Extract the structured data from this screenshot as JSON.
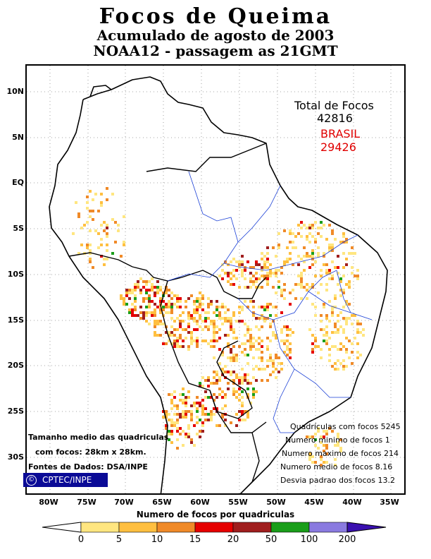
{
  "title": {
    "line1": "Focos de Queima",
    "line2": "Acumulado de agosto de 2003",
    "line3": "NOAA12 - passagem as 21GMT"
  },
  "axes": {
    "lat_labels": [
      "10N",
      "5N",
      "EQ",
      "5S",
      "10S",
      "15S",
      "20S",
      "25S",
      "30S"
    ],
    "lon_labels": [
      "80W",
      "75W",
      "70W",
      "65W",
      "60W",
      "55W",
      "50W",
      "45W",
      "40W",
      "35W"
    ]
  },
  "totals": {
    "total_label": "Total de Focos",
    "total_value": "42816",
    "brasil_label": "BRASIL",
    "brasil_value": "29426",
    "brasil_color": "#e00000"
  },
  "stats": [
    "Quadrículas com focos 5245",
    "Numero minimo de focos 1",
    "Numero maximo de focos 214",
    "Numero medio de focos 8.16",
    "Desvia padrao dos focos 13.2"
  ],
  "notes": {
    "cell_size_line1": "Tamanho medio das quadriculas",
    "cell_size_line2": "com focos: 28km x 28km.",
    "data_source": "Fontes de Dados: DSA/INPE",
    "copyright_symbol": "©",
    "org": "CPTEC/INPE"
  },
  "legend": {
    "title": "Numero de focos por quadriculas",
    "thresholds": [
      "0",
      "5",
      "10",
      "15",
      "20",
      "50",
      "100",
      "200"
    ],
    "colors": [
      "#ffe680",
      "#ffbf40",
      "#f08a28",
      "#e60000",
      "#a01e1e",
      "#1a9e1a",
      "#8a7ae0",
      "#3a10b0"
    ]
  }
}
